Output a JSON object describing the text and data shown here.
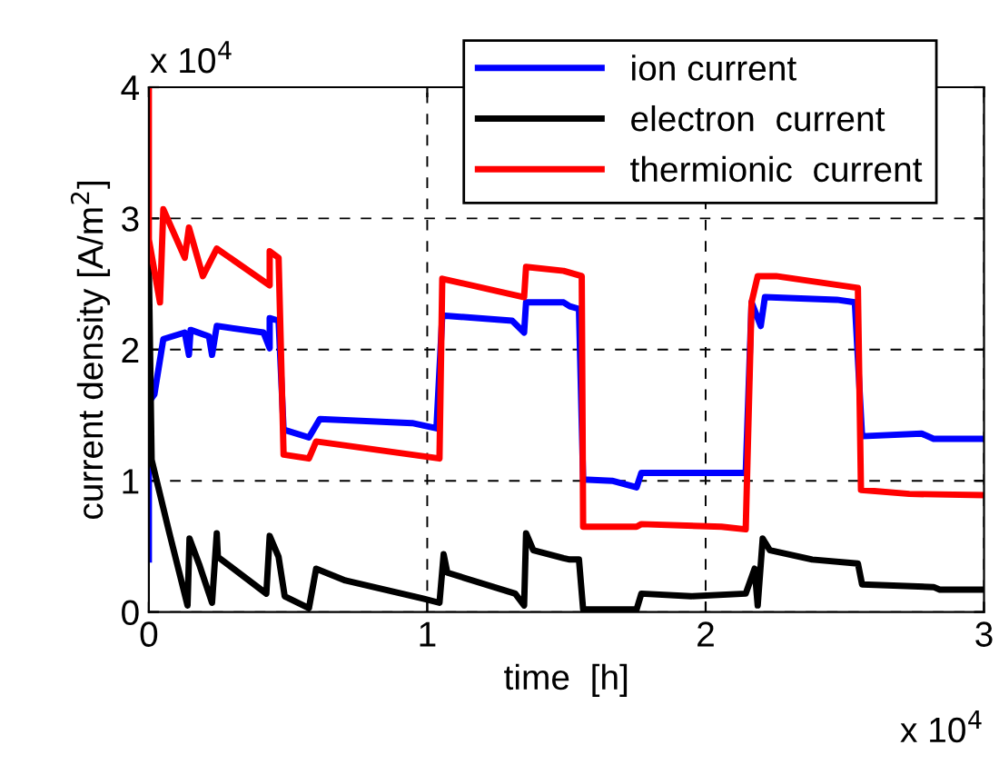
{
  "chart_data": {
    "type": "line",
    "xlabel": "time  [h]",
    "ylabel": "current density [A/m$^{2}$]",
    "annotations": [
      "x 10$^{4}$",
      "x 10$^{4}$"
    ],
    "xlim": [
      0,
      3
    ],
    "xticks": [
      0,
      1,
      2,
      3
    ],
    "ylim": [
      0,
      4
    ],
    "yticks": [
      0,
      1,
      2,
      3,
      4
    ],
    "grid": true,
    "legend": "top right",
    "line_style": "solid",
    "marker": "none",
    "series": [
      {
        "name": "ion current",
        "color": "#0000ff",
        "x": [
          0,
          0,
          0.02,
          0.052,
          0.129,
          0.144,
          0.15,
          0.216,
          0.227,
          0.244,
          0.412,
          0.434,
          0.434,
          0.466,
          0.484,
          0.575,
          0.614,
          0.946,
          1.033,
          1.054,
          1.305,
          1.348,
          1.355,
          1.49,
          1.512,
          1.545,
          1.56,
          1.664,
          1.752,
          1.769,
          2.144,
          2.165,
          2.198,
          2.213,
          2.471,
          2.536,
          2.562,
          2.776,
          2.819,
          3.0
        ],
        "values": [
          0.4,
          1.6,
          1.66,
          2.08,
          2.13,
          1.96,
          2.15,
          2.1,
          1.96,
          2.18,
          2.13,
          2.01,
          2.24,
          2.22,
          1.39,
          1.33,
          1.47,
          1.44,
          1.4,
          2.26,
          2.22,
          2.13,
          2.36,
          2.36,
          2.33,
          2.31,
          1.01,
          1.0,
          0.95,
          1.06,
          1.06,
          2.36,
          2.18,
          2.4,
          2.38,
          2.36,
          1.34,
          1.36,
          1.32,
          1.32
        ]
      },
      {
        "name": "electron  current",
        "color": "#000000",
        "x": [
          0,
          0.01,
          0.074,
          0.139,
          0.146,
          0.183,
          0.227,
          0.244,
          0.248,
          0.422,
          0.434,
          0.466,
          0.488,
          0.575,
          0.601,
          0.706,
          0.989,
          1.044,
          1.059,
          1.072,
          1.316,
          1.348,
          1.355,
          1.381,
          1.49,
          1.512,
          1.545,
          1.56,
          1.752,
          1.769,
          1.948,
          2.144,
          2.176,
          2.187,
          2.205,
          2.231,
          2.383,
          2.547,
          2.562,
          2.819,
          2.841,
          3.0
        ],
        "values": [
          2.63,
          1.16,
          0.6,
          0.05,
          0.56,
          0.35,
          0.07,
          0.6,
          0.42,
          0.14,
          0.58,
          0.42,
          0.12,
          0.03,
          0.33,
          0.24,
          0.1,
          0.07,
          0.44,
          0.3,
          0.14,
          0.05,
          0.6,
          0.47,
          0.41,
          0.4,
          0.4,
          0.02,
          0.02,
          0.14,
          0.12,
          0.14,
          0.33,
          0.05,
          0.56,
          0.47,
          0.4,
          0.37,
          0.21,
          0.19,
          0.17,
          0.17
        ]
      },
      {
        "name": "thermionic  current",
        "color": "#ff0000",
        "x": [
          0,
          0,
          0.02,
          0.04,
          0.052,
          0.129,
          0.144,
          0.194,
          0.244,
          0.434,
          0.434,
          0.466,
          0.484,
          0.575,
          0.601,
          1.044,
          1.054,
          1.348,
          1.355,
          1.49,
          1.555,
          1.56,
          1.752,
          1.769,
          2.057,
          2.144,
          2.165,
          2.187,
          2.253,
          2.547,
          2.558,
          2.732,
          3.0
        ],
        "values": [
          4.0,
          2.84,
          2.6,
          2.36,
          3.07,
          2.7,
          2.93,
          2.56,
          2.77,
          2.49,
          2.75,
          2.7,
          1.2,
          1.17,
          1.3,
          1.17,
          2.54,
          2.4,
          2.63,
          2.6,
          2.56,
          0.65,
          0.65,
          0.67,
          0.65,
          0.63,
          2.36,
          2.56,
          2.56,
          2.47,
          0.93,
          0.9,
          0.89
        ]
      }
    ]
  }
}
